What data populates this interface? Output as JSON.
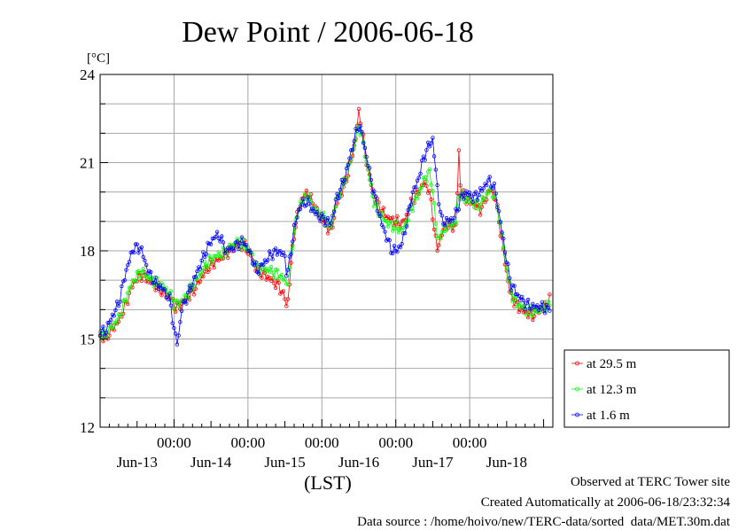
{
  "chart_data": {
    "type": "line",
    "title": "Dew Point / 2006-06-18",
    "y_unit": "[°C]",
    "ylim": [
      12,
      24
    ],
    "y_ticks": [
      12,
      15,
      18,
      21,
      24
    ],
    "xlim": [
      0,
      6.125
    ],
    "time_ticks": [
      "00:00",
      "00:00",
      "00:00",
      "00:00",
      "00:00"
    ],
    "time_tick_positions": [
      1,
      2,
      3,
      4,
      5
    ],
    "day_labels": [
      "Jun-13",
      "Jun-14",
      "Jun-15",
      "Jun-16",
      "Jun-17",
      "Jun-18"
    ],
    "day_label_positions": [
      0.5,
      1.5,
      2.5,
      3.5,
      4.5,
      5.5
    ],
    "xlabel": "(LST)",
    "grid": true,
    "legend_position": "right",
    "sample_step_days": 0.02083,
    "series": [
      {
        "name": "at 29.5 m",
        "color": "#ff0000",
        "anchors": [
          [
            0.0,
            15.1
          ],
          [
            0.06,
            15.0
          ],
          [
            0.15,
            15.3
          ],
          [
            0.25,
            15.6
          ],
          [
            0.35,
            16.2
          ],
          [
            0.45,
            16.9
          ],
          [
            0.55,
            17.2
          ],
          [
            0.65,
            17.0
          ],
          [
            0.75,
            16.8
          ],
          [
            0.85,
            16.6
          ],
          [
            0.95,
            16.4
          ],
          [
            1.0,
            16.1
          ],
          [
            1.05,
            16.1
          ],
          [
            1.15,
            16.3
          ],
          [
            1.25,
            16.6
          ],
          [
            1.35,
            17.0
          ],
          [
            1.45,
            17.4
          ],
          [
            1.55,
            17.6
          ],
          [
            1.65,
            17.8
          ],
          [
            1.75,
            18.0
          ],
          [
            1.85,
            18.2
          ],
          [
            1.95,
            18.2
          ],
          [
            2.05,
            17.8
          ],
          [
            2.12,
            17.3
          ],
          [
            2.22,
            17.2
          ],
          [
            2.32,
            17.0
          ],
          [
            2.42,
            16.8
          ],
          [
            2.5,
            16.4
          ],
          [
            2.53,
            16.0
          ],
          [
            2.56,
            16.9
          ],
          [
            2.62,
            18.5
          ],
          [
            2.7,
            19.6
          ],
          [
            2.8,
            20.0
          ],
          [
            2.9,
            19.5
          ],
          [
            3.0,
            19.1
          ],
          [
            3.08,
            18.8
          ],
          [
            3.12,
            18.6
          ],
          [
            3.2,
            19.6
          ],
          [
            3.3,
            20.2
          ],
          [
            3.38,
            20.9
          ],
          [
            3.45,
            21.7
          ],
          [
            3.5,
            22.7
          ],
          [
            3.55,
            22.0
          ],
          [
            3.62,
            20.8
          ],
          [
            3.7,
            19.9
          ],
          [
            3.8,
            19.4
          ],
          [
            3.9,
            19.1
          ],
          [
            4.0,
            19.0
          ],
          [
            4.08,
            18.9
          ],
          [
            4.15,
            19.2
          ],
          [
            4.22,
            19.7
          ],
          [
            4.3,
            20.0
          ],
          [
            4.38,
            20.3
          ],
          [
            4.45,
            20.1
          ],
          [
            4.5,
            19.2
          ],
          [
            4.56,
            18.0
          ],
          [
            4.62,
            18.6
          ],
          [
            4.7,
            18.9
          ],
          [
            4.78,
            18.8
          ],
          [
            4.82,
            18.9
          ],
          [
            4.85,
            21.5
          ],
          [
            4.88,
            20.0
          ],
          [
            4.95,
            19.8
          ],
          [
            5.05,
            19.6
          ],
          [
            5.15,
            19.4
          ],
          [
            5.22,
            19.8
          ],
          [
            5.28,
            20.1
          ],
          [
            5.35,
            19.8
          ],
          [
            5.42,
            18.6
          ],
          [
            5.48,
            17.6
          ],
          [
            5.55,
            16.5
          ],
          [
            5.65,
            16.1
          ],
          [
            5.75,
            15.9
          ],
          [
            5.85,
            15.8
          ],
          [
            5.95,
            16.0
          ],
          [
            6.05,
            16.2
          ],
          [
            6.1,
            16.4
          ]
        ]
      },
      {
        "name": "at 12.3 m",
        "color": "#00ff00",
        "anchors": [
          [
            0.0,
            15.2
          ],
          [
            0.06,
            15.1
          ],
          [
            0.15,
            15.4
          ],
          [
            0.25,
            15.7
          ],
          [
            0.35,
            16.4
          ],
          [
            0.45,
            17.0
          ],
          [
            0.55,
            17.3
          ],
          [
            0.65,
            17.1
          ],
          [
            0.75,
            16.9
          ],
          [
            0.85,
            16.8
          ],
          [
            0.95,
            16.5
          ],
          [
            1.0,
            16.2
          ],
          [
            1.05,
            16.2
          ],
          [
            1.15,
            16.4
          ],
          [
            1.25,
            16.8
          ],
          [
            1.35,
            17.2
          ],
          [
            1.45,
            17.6
          ],
          [
            1.55,
            17.8
          ],
          [
            1.65,
            17.9
          ],
          [
            1.75,
            18.1
          ],
          [
            1.85,
            18.3
          ],
          [
            1.95,
            18.2
          ],
          [
            2.05,
            17.9
          ],
          [
            2.12,
            17.4
          ],
          [
            2.22,
            17.4
          ],
          [
            2.32,
            17.3
          ],
          [
            2.42,
            17.2
          ],
          [
            2.5,
            17.0
          ],
          [
            2.53,
            16.8
          ],
          [
            2.56,
            17.3
          ],
          [
            2.62,
            18.6
          ],
          [
            2.7,
            19.6
          ],
          [
            2.8,
            19.9
          ],
          [
            2.9,
            19.4
          ],
          [
            3.0,
            19.2
          ],
          [
            3.08,
            19.0
          ],
          [
            3.12,
            18.8
          ],
          [
            3.2,
            19.7
          ],
          [
            3.3,
            20.3
          ],
          [
            3.38,
            21.0
          ],
          [
            3.45,
            21.7
          ],
          [
            3.5,
            22.3
          ],
          [
            3.55,
            21.8
          ],
          [
            3.62,
            20.8
          ],
          [
            3.7,
            19.7
          ],
          [
            3.8,
            19.2
          ],
          [
            3.9,
            18.9
          ],
          [
            4.0,
            18.8
          ],
          [
            4.08,
            18.7
          ],
          [
            4.15,
            19.0
          ],
          [
            4.22,
            19.5
          ],
          [
            4.3,
            19.9
          ],
          [
            4.38,
            20.4
          ],
          [
            4.45,
            20.7
          ],
          [
            4.5,
            20.1
          ],
          [
            4.56,
            18.4
          ],
          [
            4.62,
            18.6
          ],
          [
            4.7,
            18.9
          ],
          [
            4.78,
            18.9
          ],
          [
            4.82,
            19.0
          ],
          [
            4.85,
            19.9
          ],
          [
            4.88,
            19.9
          ],
          [
            4.95,
            19.8
          ],
          [
            5.05,
            19.6
          ],
          [
            5.15,
            19.6
          ],
          [
            5.22,
            19.9
          ],
          [
            5.28,
            20.1
          ],
          [
            5.35,
            19.8
          ],
          [
            5.42,
            18.8
          ],
          [
            5.48,
            17.8
          ],
          [
            5.55,
            16.6
          ],
          [
            5.65,
            16.2
          ],
          [
            5.75,
            16.0
          ],
          [
            5.85,
            15.9
          ],
          [
            5.95,
            16.0
          ],
          [
            6.05,
            16.1
          ],
          [
            6.1,
            16.1
          ]
        ]
      },
      {
        "name": "at 1.6 m",
        "color": "#0000ff",
        "anchors": [
          [
            0.0,
            15.3
          ],
          [
            0.06,
            15.2
          ],
          [
            0.15,
            15.7
          ],
          [
            0.25,
            16.2
          ],
          [
            0.35,
            17.3
          ],
          [
            0.45,
            18.1
          ],
          [
            0.55,
            18.1
          ],
          [
            0.65,
            17.3
          ],
          [
            0.75,
            16.9
          ],
          [
            0.85,
            16.7
          ],
          [
            0.95,
            16.3
          ],
          [
            1.0,
            15.3
          ],
          [
            1.05,
            14.8
          ],
          [
            1.1,
            16.0
          ],
          [
            1.15,
            16.3
          ],
          [
            1.25,
            16.9
          ],
          [
            1.35,
            17.5
          ],
          [
            1.45,
            18.1
          ],
          [
            1.55,
            18.5
          ],
          [
            1.62,
            18.5
          ],
          [
            1.7,
            18.0
          ],
          [
            1.8,
            18.1
          ],
          [
            1.9,
            18.3
          ],
          [
            1.95,
            18.3
          ],
          [
            2.05,
            17.8
          ],
          [
            2.12,
            17.3
          ],
          [
            2.22,
            17.6
          ],
          [
            2.32,
            17.9
          ],
          [
            2.42,
            18.0
          ],
          [
            2.5,
            17.8
          ],
          [
            2.53,
            17.1
          ],
          [
            2.56,
            17.6
          ],
          [
            2.62,
            18.7
          ],
          [
            2.7,
            19.5
          ],
          [
            2.8,
            19.7
          ],
          [
            2.9,
            19.3
          ],
          [
            3.0,
            19.1
          ],
          [
            3.08,
            19.0
          ],
          [
            3.12,
            18.9
          ],
          [
            3.2,
            19.8
          ],
          [
            3.3,
            20.4
          ],
          [
            3.38,
            21.2
          ],
          [
            3.45,
            21.9
          ],
          [
            3.5,
            22.3
          ],
          [
            3.55,
            21.9
          ],
          [
            3.62,
            21.0
          ],
          [
            3.7,
            20.0
          ],
          [
            3.8,
            19.0
          ],
          [
            3.9,
            18.3
          ],
          [
            3.95,
            18.0
          ],
          [
            4.0,
            18.0
          ],
          [
            4.08,
            18.2
          ],
          [
            4.15,
            19.0
          ],
          [
            4.22,
            19.9
          ],
          [
            4.3,
            20.4
          ],
          [
            4.38,
            21.2
          ],
          [
            4.45,
            21.6
          ],
          [
            4.5,
            21.8
          ],
          [
            4.56,
            20.2
          ],
          [
            4.62,
            19.0
          ],
          [
            4.7,
            19.0
          ],
          [
            4.78,
            19.1
          ],
          [
            4.82,
            19.3
          ],
          [
            4.88,
            19.8
          ],
          [
            4.95,
            20.0
          ],
          [
            5.05,
            19.8
          ],
          [
            5.15,
            20.0
          ],
          [
            5.22,
            20.3
          ],
          [
            5.28,
            20.4
          ],
          [
            5.35,
            20.0
          ],
          [
            5.42,
            18.9
          ],
          [
            5.48,
            18.0
          ],
          [
            5.55,
            16.9
          ],
          [
            5.65,
            16.5
          ],
          [
            5.75,
            16.2
          ],
          [
            5.85,
            16.1
          ],
          [
            5.95,
            16.1
          ],
          [
            6.05,
            16.0
          ],
          [
            6.1,
            16.1
          ]
        ]
      }
    ]
  },
  "footer": {
    "line1": "Observed at TERC Tower site",
    "line2": "Created Automatically at 2006-06-18/23:32:34",
    "line3": "Data source : /home/hoivo/new/TERC-data/sorted  data/MET.30m.dat"
  }
}
